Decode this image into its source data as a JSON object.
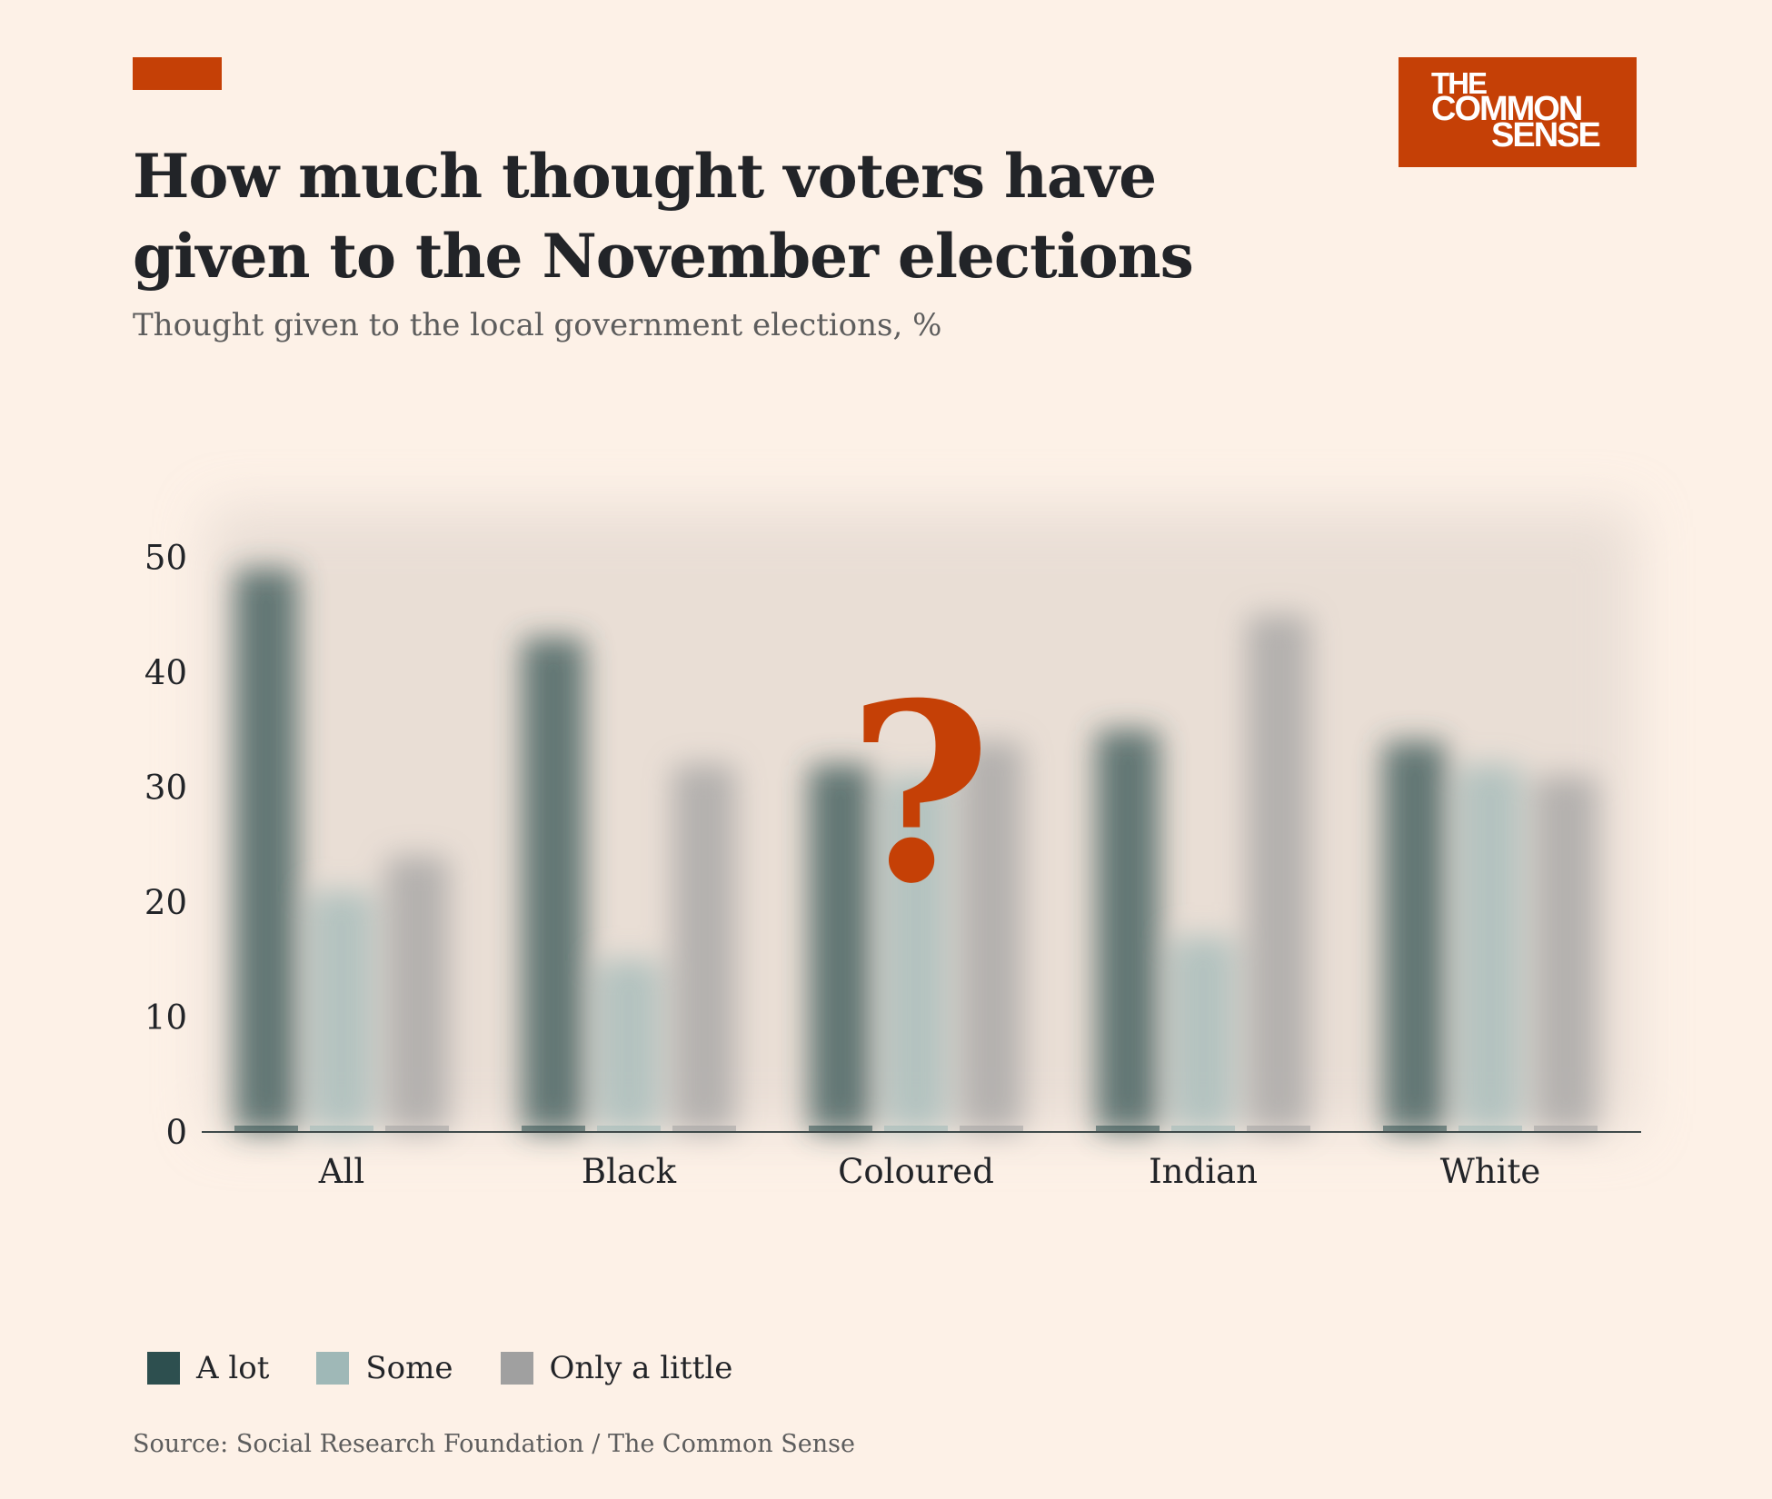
{
  "header": {
    "logo_line1": "THE",
    "logo_line2": "COMMON",
    "logo_line3": "SENSE",
    "accent_color": "#c54006"
  },
  "chart_data": {
    "type": "bar",
    "title": "How much thought voters have given to the November elections",
    "subtitle": "Thought given to the local government elections, %",
    "categories": [
      "All",
      "Black",
      "Coloured",
      "Indian",
      "White"
    ],
    "series": [
      {
        "name": "A lot",
        "color": "#2d4f4f",
        "values": [
          49,
          43,
          32,
          35,
          34
        ]
      },
      {
        "name": "Some",
        "color": "#9fb8b7",
        "values": [
          21,
          15,
          31,
          17,
          32
        ]
      },
      {
        "name": "Only a little",
        "color": "#a0a0a0",
        "values": [
          24,
          32,
          34,
          45,
          31
        ]
      }
    ],
    "y_ticks": [
      0,
      10,
      20,
      30,
      40,
      50
    ],
    "ylim": [
      0,
      55
    ],
    "grid": false,
    "legend_position": "bottom-left",
    "annotation": "?",
    "annotation_color": "#c54006",
    "bars_blurred": true
  },
  "footer": {
    "source": "Source: Social Research Foundation / The Common Sense"
  }
}
